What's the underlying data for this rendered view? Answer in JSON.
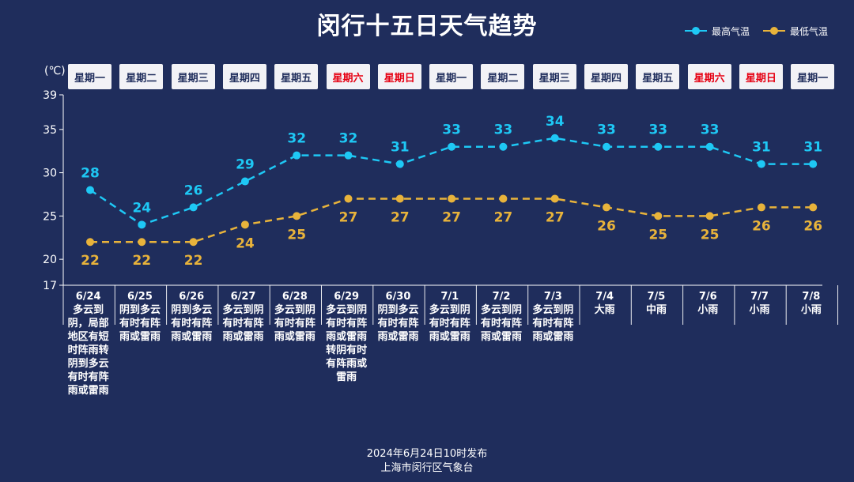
{
  "title": "闵行十五日天气趋势",
  "unit": "(℃)",
  "legend": {
    "high_label": "最高气温",
    "low_label": "最低气温"
  },
  "colors": {
    "background": "#1f2d5c",
    "high": "#1ec8f5",
    "low": "#e8b33b",
    "weekend": "#e60012",
    "weekday": "#1f2d5c"
  },
  "chart_data": {
    "type": "line",
    "title": "闵行十五日天气趋势",
    "ylabel": "(℃)",
    "ylim": [
      17,
      39
    ],
    "yticks": [
      39,
      35,
      30,
      25,
      20,
      17
    ],
    "categories": [
      "6/24",
      "6/25",
      "6/26",
      "6/27",
      "6/28",
      "6/29",
      "6/30",
      "7/1",
      "7/2",
      "7/3",
      "7/4",
      "7/5",
      "7/6",
      "7/7",
      "7/8"
    ],
    "weekdays": [
      "星期一",
      "星期二",
      "星期三",
      "星期四",
      "星期五",
      "星期六",
      "星期日",
      "星期一",
      "星期二",
      "星期三",
      "星期四",
      "星期五",
      "星期六",
      "星期日",
      "星期一"
    ],
    "weekend": [
      false,
      false,
      false,
      false,
      false,
      true,
      true,
      false,
      false,
      false,
      false,
      false,
      true,
      true,
      false
    ],
    "descriptions": [
      "多云到阴，局部地区有短时阵雨转阴到多云有时有阵雨或雷雨",
      "阴到多云有时有阵雨或雷雨",
      "阴到多云有时有阵雨或雷雨",
      "多云到阴有时有阵雨或雷雨",
      "多云到阴有时有阵雨或雷雨",
      "多云到阴有时有阵雨或雷雨转阴有时有阵雨或雷雨",
      "阴到多云有时有阵雨或雷雨",
      "多云到阴有时有阵雨或雷雨",
      "多云到阴有时有阵雨或雷雨",
      "多云到阴有时有阵雨或雷雨",
      "大雨",
      "中雨",
      "小雨",
      "小雨",
      "小雨"
    ],
    "series": [
      {
        "name": "最高气温",
        "values": [
          28,
          24,
          26,
          29,
          32,
          32,
          31,
          33,
          33,
          34,
          33,
          33,
          33,
          31,
          31
        ]
      },
      {
        "name": "最低气温",
        "values": [
          22,
          22,
          22,
          24,
          25,
          27,
          27,
          27,
          27,
          27,
          26,
          25,
          25,
          26,
          26
        ]
      }
    ],
    "grid": false,
    "legend_position": "top-right"
  },
  "footer": {
    "line1": "2024年6月24日10时发布",
    "line2": "上海市闵行区气象台"
  }
}
